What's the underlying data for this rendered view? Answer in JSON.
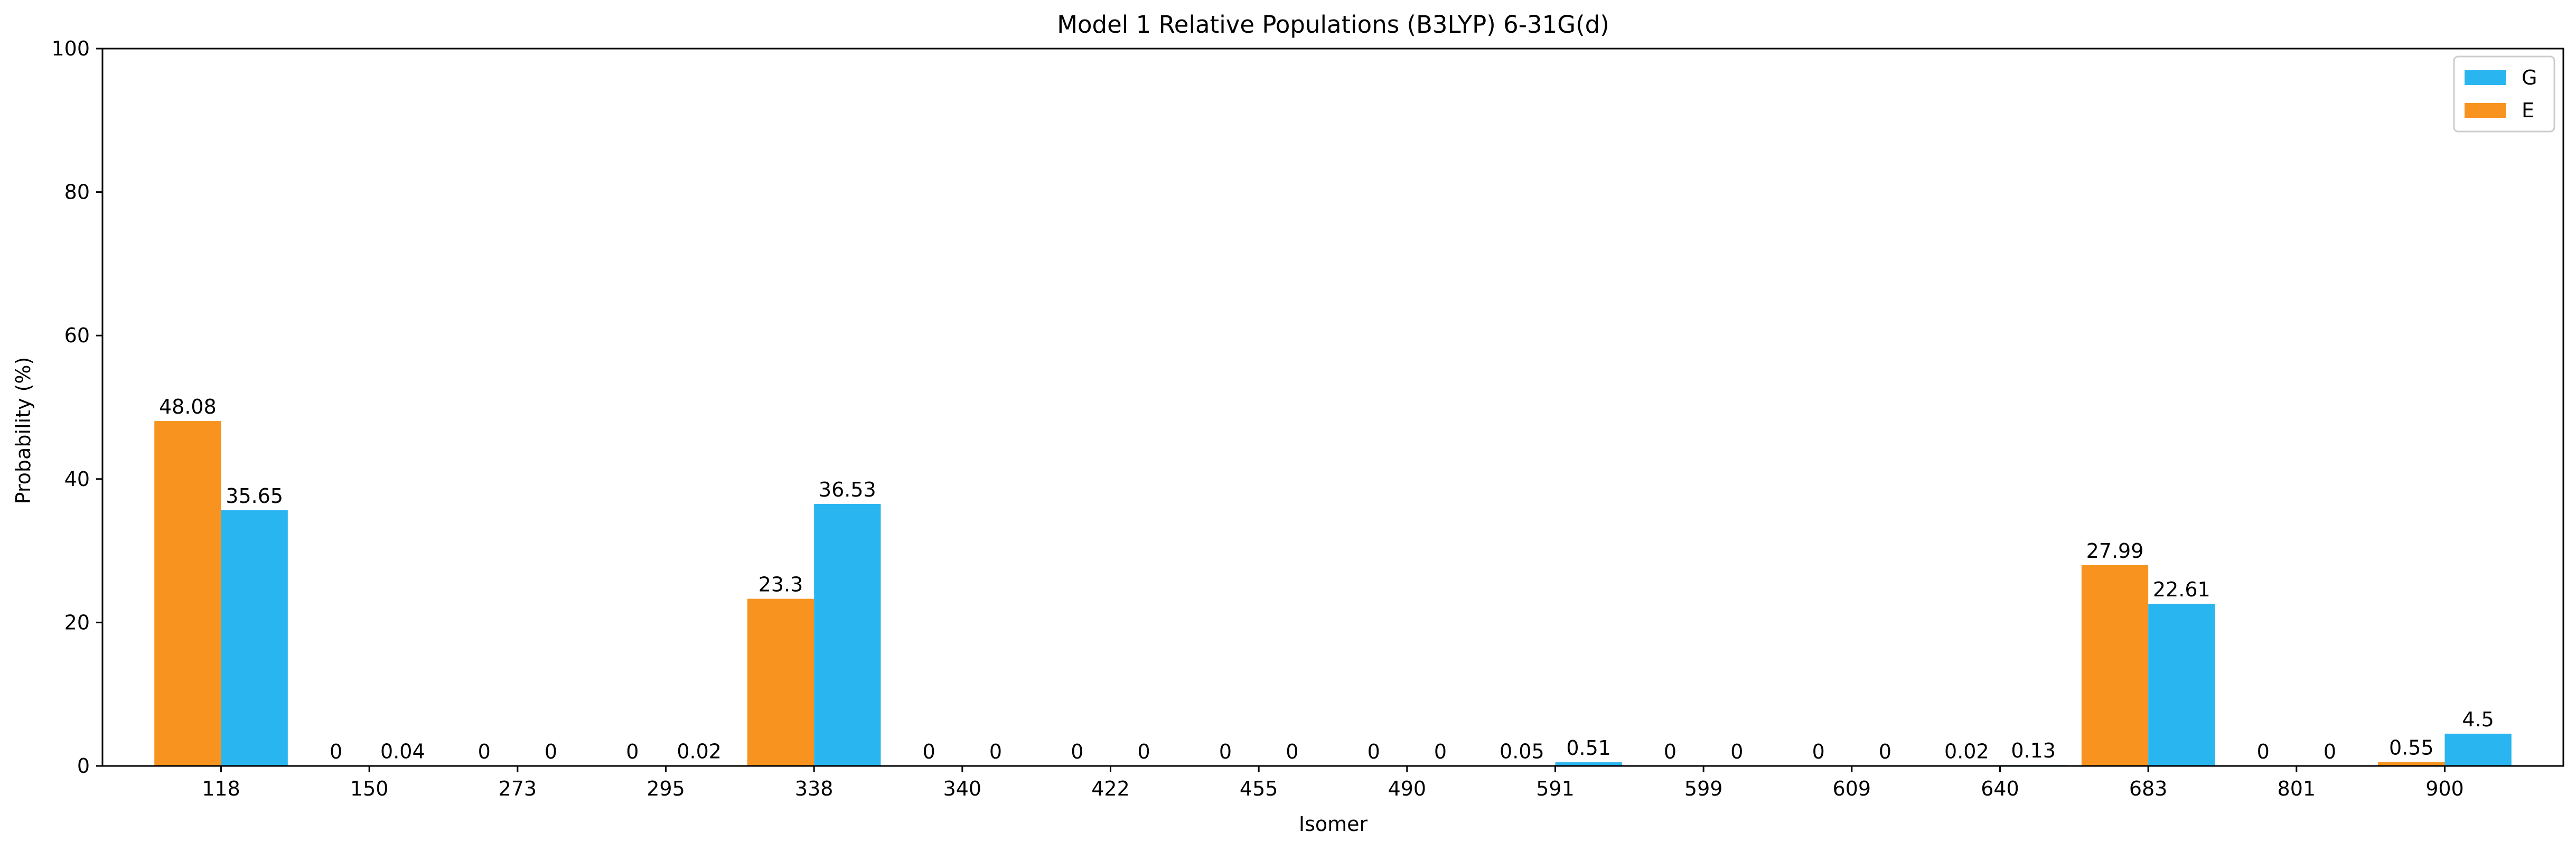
{
  "chart_data": {
    "type": "bar",
    "title": "Model 1 Relative Populations (B3LYP) 6-31G(d)",
    "xlabel": "Isomer",
    "ylabel": "Probability (%)",
    "ylim": [
      0,
      100
    ],
    "yticks": [
      0,
      20,
      40,
      60,
      80,
      100
    ],
    "grid": false,
    "legend_position": "top-right",
    "categories": [
      "118",
      "150",
      "273",
      "295",
      "338",
      "340",
      "422",
      "455",
      "490",
      "591",
      "599",
      "609",
      "640",
      "683",
      "801",
      "900"
    ],
    "series": [
      {
        "name": "E",
        "color": "#f7931e",
        "values": [
          48.08,
          0,
          0,
          0,
          23.3,
          0,
          0,
          0,
          0,
          0.05,
          0,
          0,
          0.02,
          27.99,
          0,
          0.55
        ],
        "labels": [
          "48.08",
          "0",
          "0",
          "0",
          "23.3",
          "0",
          "0",
          "0",
          "0",
          "0.05",
          "0",
          "0",
          "0.02",
          "27.99",
          "0",
          "0.55"
        ]
      },
      {
        "name": "G",
        "color": "#29b5f0",
        "values": [
          35.65,
          0.04,
          0,
          0.02,
          36.53,
          0,
          0,
          0,
          0,
          0.51,
          0,
          0,
          0.13,
          22.61,
          0,
          4.5
        ],
        "labels": [
          "35.65",
          "0.04",
          "0",
          "0.02",
          "36.53",
          "0",
          "0",
          "0",
          "0",
          "0.51",
          "0",
          "0",
          "0.13",
          "22.61",
          "0",
          "4.5"
        ]
      }
    ],
    "legend_order": [
      "G",
      "E"
    ]
  }
}
